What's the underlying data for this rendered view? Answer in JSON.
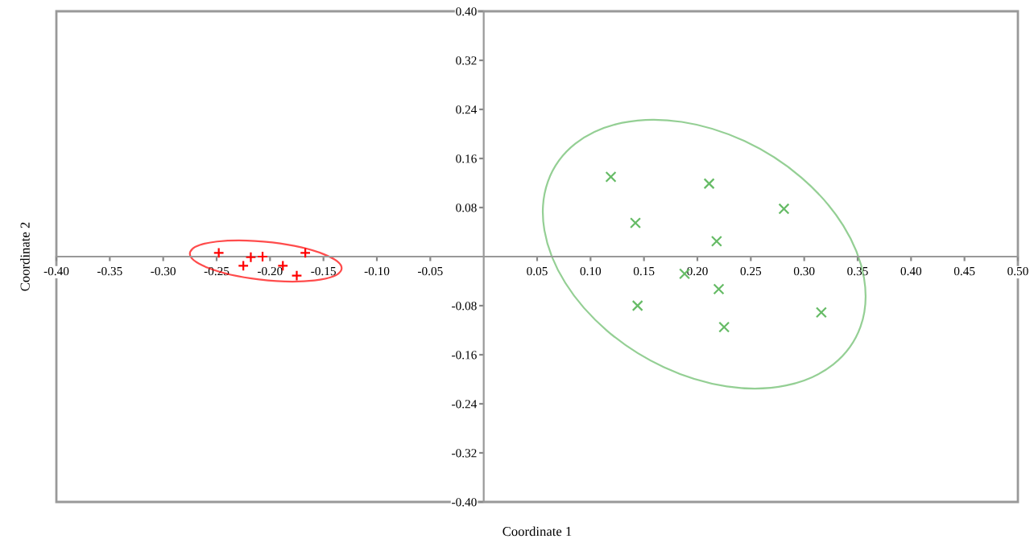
{
  "chart_data": {
    "type": "scatter",
    "xlabel": "Coordinate 1",
    "ylabel": "Coordinate 2",
    "xlim": [
      -0.4,
      0.5
    ],
    "ylim": [
      -0.4,
      0.4
    ],
    "xticks": [
      {
        "value": -0.4,
        "label": "-0.40"
      },
      {
        "value": -0.35,
        "label": "-0.35"
      },
      {
        "value": -0.3,
        "label": "-0.30"
      },
      {
        "value": -0.25,
        "label": "-0.25"
      },
      {
        "value": -0.2,
        "label": "-0.20"
      },
      {
        "value": -0.15,
        "label": "-0.15"
      },
      {
        "value": -0.1,
        "label": "-0.10"
      },
      {
        "value": -0.05,
        "label": "-0.05"
      },
      {
        "value": 0.05,
        "label": "0.05"
      },
      {
        "value": 0.1,
        "label": "0.10"
      },
      {
        "value": 0.15,
        "label": "0.15"
      },
      {
        "value": 0.2,
        "label": "0.20"
      },
      {
        "value": 0.25,
        "label": "0.25"
      },
      {
        "value": 0.3,
        "label": "0.30"
      },
      {
        "value": 0.35,
        "label": "0.35"
      },
      {
        "value": 0.4,
        "label": "0.40"
      },
      {
        "value": 0.45,
        "label": "0.45"
      },
      {
        "value": 0.5,
        "label": "0.50"
      }
    ],
    "yticks": [
      {
        "value": -0.4,
        "label": "-0.40"
      },
      {
        "value": -0.32,
        "label": "-0.32"
      },
      {
        "value": -0.24,
        "label": "-0.24"
      },
      {
        "value": -0.16,
        "label": "-0.16"
      },
      {
        "value": -0.08,
        "label": "-0.08"
      },
      {
        "value": 0.08,
        "label": "0.08"
      },
      {
        "value": 0.16,
        "label": "0.16"
      },
      {
        "value": 0.24,
        "label": "0.24"
      },
      {
        "value": 0.32,
        "label": "0.32"
      },
      {
        "value": 0.4,
        "label": "0.40"
      }
    ],
    "grid": false,
    "legend": false,
    "series": [
      {
        "marker": "plus",
        "color": "#ff0000",
        "x": [
          -0.248,
          -0.225,
          -0.218,
          -0.207,
          -0.188,
          -0.175,
          -0.167
        ],
        "values": [
          0.006,
          -0.015,
          -0.001,
          0.0,
          -0.015,
          -0.031,
          0.006
        ]
      },
      {
        "marker": "cross",
        "color": "#66bb66",
        "x": [
          0.119,
          0.211,
          0.142,
          0.281,
          0.218,
          0.188,
          0.22,
          0.144,
          0.225,
          0.316
        ],
        "values": [
          0.13,
          0.119,
          0.055,
          0.078,
          0.025,
          -0.028,
          -0.053,
          -0.08,
          -0.115,
          -0.091
        ]
      }
    ]
  }
}
